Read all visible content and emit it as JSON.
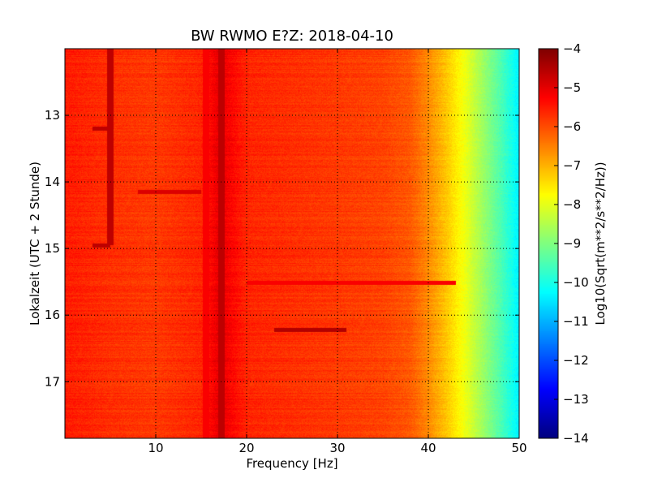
{
  "chart_data": {
    "type": "heatmap",
    "title": "BW RWMO E?Z: 2018-04-10",
    "xlabel": "Frequency [Hz]",
    "ylabel": "Lokalzeit (UTC + 2 Stunde)",
    "xlim": [
      0,
      50
    ],
    "ylim": [
      17.85,
      12.0
    ],
    "x_ticks": [
      10,
      20,
      30,
      40,
      50
    ],
    "y_ticks": [
      13,
      14,
      15,
      16,
      17
    ],
    "grid": true,
    "grid_style": "dotted",
    "colormap": "jet",
    "colorbar": {
      "label": "Log10(Sqrt(m**2/s**2/Hz))",
      "range": [
        -14,
        -4
      ],
      "ticks": [
        -4,
        -5,
        -6,
        -7,
        -8,
        -9,
        -10,
        -11,
        -12,
        -13,
        -14
      ]
    },
    "spectrum_profile": {
      "frequencies": [
        0,
        5,
        10,
        15,
        17,
        20,
        25,
        30,
        35,
        38,
        40,
        42,
        44,
        46,
        48,
        50
      ],
      "levels": [
        -5.5,
        -5.7,
        -5.8,
        -5.6,
        -5.0,
        -5.6,
        -5.7,
        -5.8,
        -5.9,
        -6.1,
        -6.6,
        -7.2,
        -7.9,
        -8.7,
        -9.5,
        -10.4
      ]
    },
    "features": [
      {
        "kind": "vertical_line",
        "frequency": 17.2,
        "level": -4.6
      },
      {
        "kind": "vertical_line",
        "frequency": 15.5,
        "level": -5.2
      },
      {
        "kind": "vertical_line",
        "frequency": 5.0,
        "time_range": [
          12.0,
          14.95
        ],
        "level": -4.6
      },
      {
        "kind": "horizontal_line",
        "time": 13.2,
        "freq_range": [
          3.0,
          5.0
        ],
        "level": -4.6
      },
      {
        "kind": "horizontal_line",
        "time": 14.95,
        "freq_range": [
          3.0,
          5.0
        ],
        "level": -4.6
      },
      {
        "kind": "horizontal_line",
        "time": 16.22,
        "freq_range": [
          23.0,
          31.0
        ],
        "level": -4.5
      },
      {
        "kind": "horizontal_line",
        "time": 14.15,
        "freq_range": [
          8.0,
          15.0
        ],
        "level": -4.9
      },
      {
        "kind": "horizontal_line",
        "time": 15.52,
        "freq_range": [
          20.0,
          43.0
        ],
        "level": -5.2
      }
    ]
  }
}
